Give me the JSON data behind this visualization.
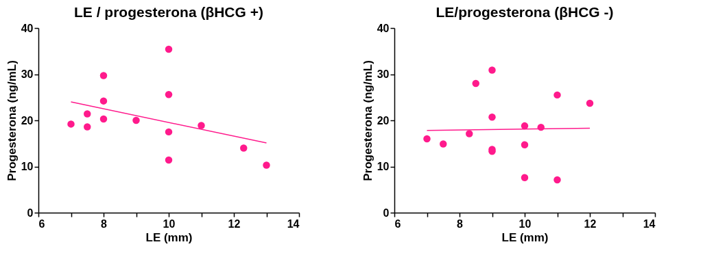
{
  "chart_data": [
    {
      "type": "scatter",
      "title": "LE / progesterona (βHCG +)",
      "xlabel": "LE (mm)",
      "ylabel": "Progesterona (ng/mL)",
      "xlim": [
        6,
        14
      ],
      "ylim": [
        0,
        40
      ],
      "xticks": [
        6,
        {
          "value": 7,
          "label": null
        },
        8,
        {
          "value": 9,
          "label": null
        },
        10,
        {
          "value": 11,
          "label": null
        },
        12,
        {
          "value": 13,
          "label": null
        },
        14
      ],
      "yticks": [
        0,
        10,
        20,
        30,
        40
      ],
      "grid": false,
      "marker": "circle",
      "legend": false,
      "series": [
        {
          "color": "#ff1a8c",
          "x": [
            7,
            7.5,
            7.5,
            8,
            8,
            8,
            9,
            10,
            10,
            10,
            10,
            11,
            12.3,
            13
          ],
          "values": [
            19.2,
            21.4,
            18.6,
            29.7,
            24.2,
            20.3,
            20.0,
            35.4,
            25.6,
            17.5,
            11.4,
            18.9,
            14.0,
            10.3
          ]
        },
        {
          "type": "line",
          "color": "#ff1a8c",
          "marker": "none",
          "line_style": "solid",
          "x": [
            7,
            13
          ],
          "values": [
            24.0,
            15.1
          ]
        }
      ]
    },
    {
      "type": "scatter",
      "title": "LE/progesterona (βHCG -)",
      "xlabel": "LE (mm)",
      "ylabel": "Progesterona (ng/mL)",
      "xlim": [
        6,
        14
      ],
      "ylim": [
        0,
        40
      ],
      "xticks": [
        6,
        {
          "value": 7,
          "label": null
        },
        8,
        {
          "value": 9,
          "label": null
        },
        10,
        {
          "value": 11,
          "label": null
        },
        12,
        {
          "value": 13,
          "label": null
        },
        14
      ],
      "yticks": [
        0,
        10,
        20,
        30,
        40
      ],
      "grid": false,
      "marker": "circle",
      "legend": false,
      "series": [
        {
          "color": "#ff1a8c",
          "x": [
            7,
            7.5,
            8.3,
            8.5,
            9,
            9,
            9,
            9,
            10,
            10,
            10,
            10.5,
            11,
            11,
            12
          ],
          "values": [
            16.0,
            14.9,
            17.1,
            28.0,
            30.9,
            20.7,
            13.7,
            13.3,
            18.8,
            14.7,
            7.6,
            18.5,
            25.5,
            7.1,
            23.7
          ]
        },
        {
          "type": "line",
          "color": "#ff1a8c",
          "marker": "none",
          "line_style": "solid",
          "x": [
            7,
            12
          ],
          "values": [
            17.8,
            18.3
          ]
        }
      ]
    }
  ]
}
